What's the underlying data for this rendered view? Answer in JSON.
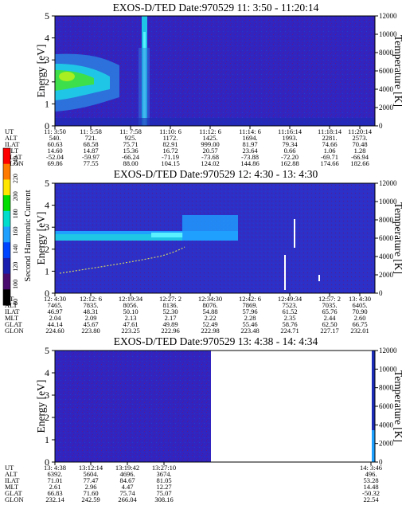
{
  "figure": {
    "colorbar": {
      "label": "Second Harmonic Current",
      "ticks": [
        "240",
        "220",
        "200",
        "180",
        "160",
        "140",
        "120",
        "100",
        "80"
      ],
      "colors": [
        "#ff0000",
        "#ff7a00",
        "#ffe600",
        "#00dd00",
        "#00ddcc",
        "#1fa0ff",
        "#0044ff",
        "#1a1fb0",
        "#4a0b6e",
        "#000000"
      ]
    }
  },
  "chart_data": [
    {
      "type": "heatmap",
      "title": "EXOS-D/TED   Date:970529   11: 3:50 - 11:20:14",
      "ylabel": "Energy [eV]",
      "ylim": [
        0,
        5
      ],
      "yticks": [
        "0",
        "1",
        "2",
        "3",
        "4",
        "5"
      ],
      "y2label": "Temperature [K]",
      "y2lim": [
        0,
        12000
      ],
      "y2ticks": [
        "0",
        "2000",
        "4000",
        "6000",
        "8000",
        "10000",
        "12000"
      ],
      "row_labels": [
        "UT",
        "ALT",
        "ILAT",
        "MLT",
        "GLAT",
        "GLON"
      ],
      "columns": [
        [
          "11: 3:50",
          "540.",
          "60.63",
          "14.60",
          "-52.04",
          "69.86"
        ],
        [
          "11: 5:58",
          "721.",
          "68.58",
          "14.87",
          "-59.97",
          "77.55"
        ],
        [
          "11: 7:58",
          "925.",
          "75.71",
          "15.36",
          "-66.24",
          "88.00"
        ],
        [
          "11:10: 6",
          "1172.",
          "82.91",
          "16.72",
          "-71.19",
          "104.15"
        ],
        [
          "11:12: 6",
          "1425.",
          "999.00",
          "20.57",
          "-73.68",
          "124.02"
        ],
        [
          "11:14: 6",
          "1694.",
          "81.97",
          "23.64",
          "-73.88",
          "144.86"
        ],
        [
          "11:16:14",
          "1993.",
          "79.34",
          "0.66",
          "-72.20",
          "162.88"
        ],
        [
          "11:18:14",
          "2281.",
          "74.66",
          "1.06",
          "-69.71",
          "174.66"
        ],
        [
          "11:20:14",
          "2573.",
          "70.48",
          "1.28",
          "-66.94",
          "182.66"
        ]
      ]
    },
    {
      "type": "heatmap",
      "title": "EXOS-D/TED   Date:970529   12: 4:30 - 13: 4:30",
      "ylabel": "Energy [eV]",
      "ylim": [
        0,
        5
      ],
      "yticks": [
        "0",
        "1",
        "2",
        "3",
        "4",
        "5"
      ],
      "y2label": "Temperature [K]",
      "y2lim": [
        0,
        12000
      ],
      "y2ticks": [
        "0",
        "2000",
        "4000",
        "6000",
        "8000",
        "10000",
        "12000"
      ],
      "row_labels": [
        "UT",
        "ALT",
        "ILAT",
        "MLT",
        "GLAT",
        "GLON"
      ],
      "columns": [
        [
          "12: 4:30",
          "7465.",
          "46.97",
          "2.04",
          "44.14",
          "224.60"
        ],
        [
          "12:12: 6",
          "7835.",
          "48.31",
          "2.09",
          "45.67",
          "223.80"
        ],
        [
          "12:19:34",
          "8056.",
          "50.10",
          "2.13",
          "47.61",
          "223.25"
        ],
        [
          "12:27: 2",
          "8136.",
          "52.30",
          "2.17",
          "49.89",
          "222.96"
        ],
        [
          "12:34:30",
          "8076.",
          "54.88",
          "2.22",
          "52.49",
          "222.98"
        ],
        [
          "12:42: 6",
          "7869.",
          "57.96",
          "2.28",
          "55.46",
          "223.48"
        ],
        [
          "12:49:34",
          "7523.",
          "61.52",
          "2.35",
          "58.76",
          "224.71"
        ],
        [
          "12:57: 2",
          "7035.",
          "65.76",
          "2.44",
          "62.50",
          "227.17"
        ],
        [
          "13: 4:30",
          "6405.",
          "70.90",
          "2.60",
          "66.75",
          "232.01"
        ]
      ]
    },
    {
      "type": "heatmap",
      "title": "EXOS-D/TED   Date:970529   13: 4:38 - 14: 4:34",
      "ylabel": "Energy [eV]",
      "ylim": [
        0,
        5
      ],
      "yticks": [
        "0",
        "1",
        "2",
        "3",
        "4",
        "5"
      ],
      "y2label": "Temperature [K]",
      "y2lim": [
        0,
        12000
      ],
      "y2ticks": [
        "0",
        "2000",
        "4000",
        "6000",
        "8000",
        "10000",
        "12000"
      ],
      "row_labels": [
        "UT",
        "ALT",
        "ILAT",
        "MLT",
        "GLAT",
        "GLON"
      ],
      "columns": [
        [
          "13: 4:38",
          "6392.",
          "71.01",
          "2.61",
          "66.83",
          "232.14"
        ],
        [
          "13:12:14",
          "5604.",
          "77.47",
          "2.96",
          "71.60",
          "242.59"
        ],
        [
          "13:19:42",
          "4696.",
          "84.67",
          "4.47",
          "75.74",
          "266.04"
        ],
        [
          "13:27:10",
          "3674.",
          "81.05",
          "12.27",
          "75.07",
          "308.16"
        ]
      ],
      "last_column": [
        "14: 3:46",
        "496.",
        "53.28",
        "14.48",
        "-50.32",
        "22.54"
      ]
    }
  ]
}
